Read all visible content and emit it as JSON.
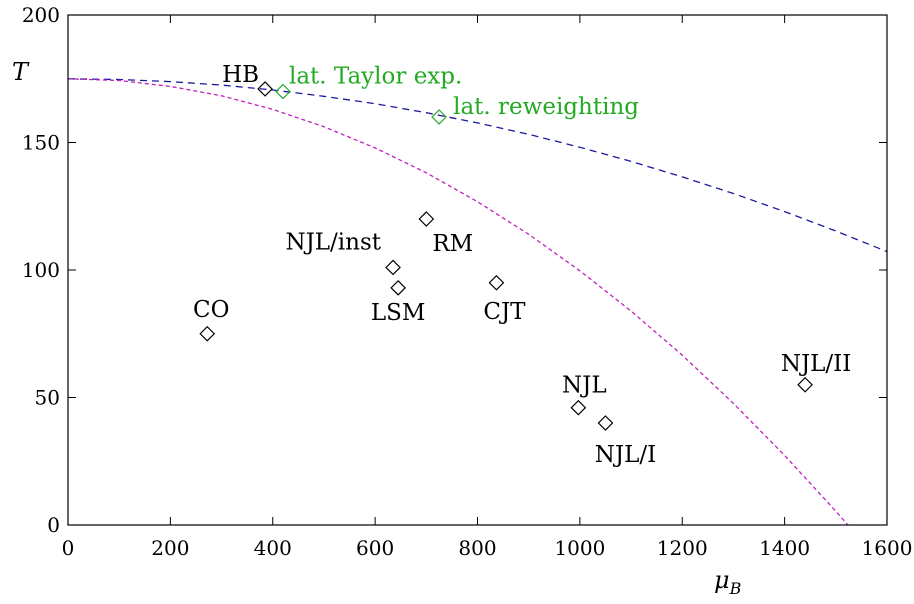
{
  "chart_data": {
    "type": "scatter",
    "xlabel": "μ",
    "xlabel_sub": "B",
    "ylabel": "T",
    "xlim": [
      0,
      1600
    ],
    "ylim": [
      0,
      200
    ],
    "x_ticks": [
      0,
      200,
      400,
      600,
      800,
      1000,
      1200,
      1400,
      1600
    ],
    "y_ticks": [
      0,
      50,
      100,
      150,
      200
    ],
    "grid": false,
    "colors": {
      "black": "#000000",
      "green": "#22aa22",
      "blue": "#1a1aa0",
      "magenta": "#c020c0"
    },
    "points": [
      {
        "label": "HB",
        "x": 385,
        "y": 171,
        "color": "black"
      },
      {
        "label": "lat. Taylor exp.",
        "x": 420,
        "y": 170,
        "color": "green"
      },
      {
        "label": "lat. reweighting",
        "x": 725,
        "y": 160,
        "color": "green"
      },
      {
        "label": "RM",
        "x": 700,
        "y": 120,
        "color": "black"
      },
      {
        "label": "NJL/inst",
        "x": 635,
        "y": 101,
        "color": "black"
      },
      {
        "label": "LSM",
        "x": 645,
        "y": 93,
        "color": "black"
      },
      {
        "label": "CJT",
        "x": 837,
        "y": 95,
        "color": "black"
      },
      {
        "label": "CO",
        "x": 272,
        "y": 75,
        "color": "black"
      },
      {
        "label": "NJL",
        "x": 997,
        "y": 46,
        "color": "black"
      },
      {
        "label": "NJL/I",
        "x": 1050,
        "y": 40,
        "color": "black"
      },
      {
        "label": "NJL/II",
        "x": 1440,
        "y": 55,
        "color": "black"
      }
    ],
    "curves": [
      {
        "color": "blue",
        "dash": "dashed",
        "x": [
          0,
          100,
          200,
          300,
          400,
          500,
          600,
          700,
          800,
          900,
          1000,
          1100,
          1200,
          1300,
          1400,
          1500,
          1600
        ],
        "y": [
          175,
          174.7,
          173.9,
          172.5,
          170.6,
          168.1,
          165.2,
          161.7,
          157.7,
          153.2,
          148.1,
          142.6,
          136.5,
          130.0,
          122.9,
          115.3,
          107.2
        ]
      },
      {
        "color": "magenta",
        "dash": "dotted",
        "x": [
          0,
          100,
          200,
          300,
          400,
          500,
          600,
          700,
          800,
          900,
          1000,
          1100,
          1200,
          1300,
          1400,
          1500,
          1530
        ],
        "y": [
          175,
          174.3,
          172.0,
          168.3,
          163.0,
          156.2,
          147.9,
          138.1,
          126.8,
          114.0,
          99.7,
          83.9,
          66.6,
          47.7,
          27.3,
          5.4,
          -1.5
        ]
      }
    ]
  }
}
